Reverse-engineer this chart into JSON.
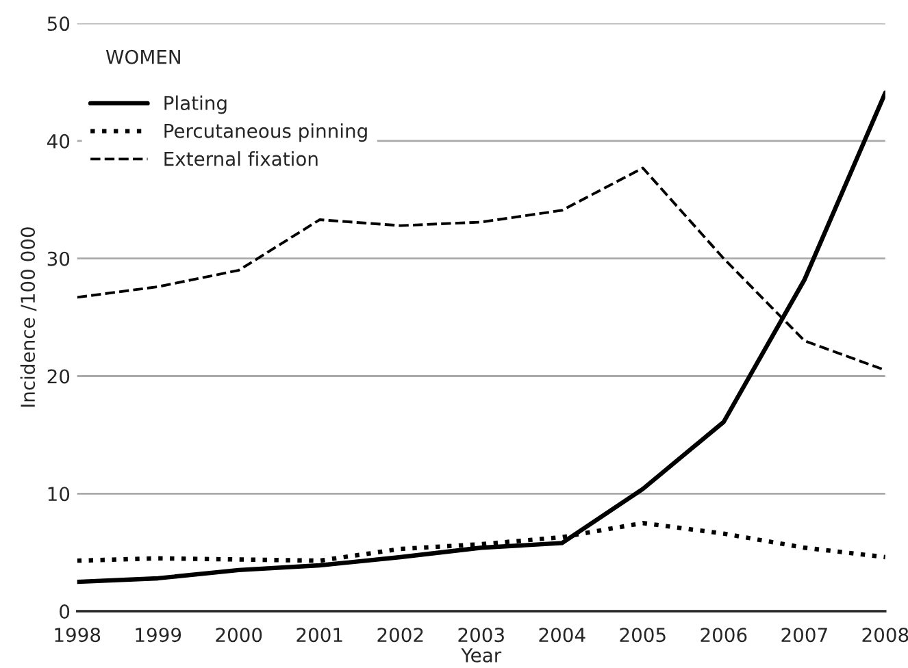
{
  "chart_data": {
    "type": "line",
    "xlabel": "Year",
    "ylabel": "Incidence /100 000",
    "annotations": [
      "WOMEN"
    ],
    "x": [
      1998,
      1999,
      2000,
      2001,
      2002,
      2003,
      2004,
      2005,
      2006,
      2007,
      2008
    ],
    "series": [
      {
        "name": "Plating",
        "color": "#000000",
        "line_style": "solid",
        "values": [
          2.5,
          2.8,
          3.5,
          3.9,
          4.6,
          5.4,
          5.8,
          10.4,
          16.1,
          28.2,
          44.1
        ]
      },
      {
        "name": "Percutaneous pinning",
        "color": "#000000",
        "line_style": "dotted",
        "values": [
          4.3,
          4.5,
          4.4,
          4.3,
          5.3,
          5.7,
          6.3,
          7.5,
          6.6,
          5.4,
          4.6
        ]
      },
      {
        "name": "External fixation",
        "color": "#000000",
        "line_style": "dashed",
        "values": [
          26.7,
          27.6,
          29.0,
          33.3,
          32.8,
          33.1,
          34.1,
          37.7,
          30.0,
          23.0,
          20.5
        ]
      }
    ],
    "xlim": [
      1998,
      2008
    ],
    "xticks": [
      1998,
      1999,
      2000,
      2001,
      2002,
      2003,
      2004,
      2005,
      2006,
      2007,
      2008
    ],
    "ylim": [
      0,
      50
    ],
    "yticks": [
      0,
      10,
      20,
      30,
      40,
      50
    ],
    "grid": "y",
    "legend": "top left",
    "marker": "none"
  }
}
